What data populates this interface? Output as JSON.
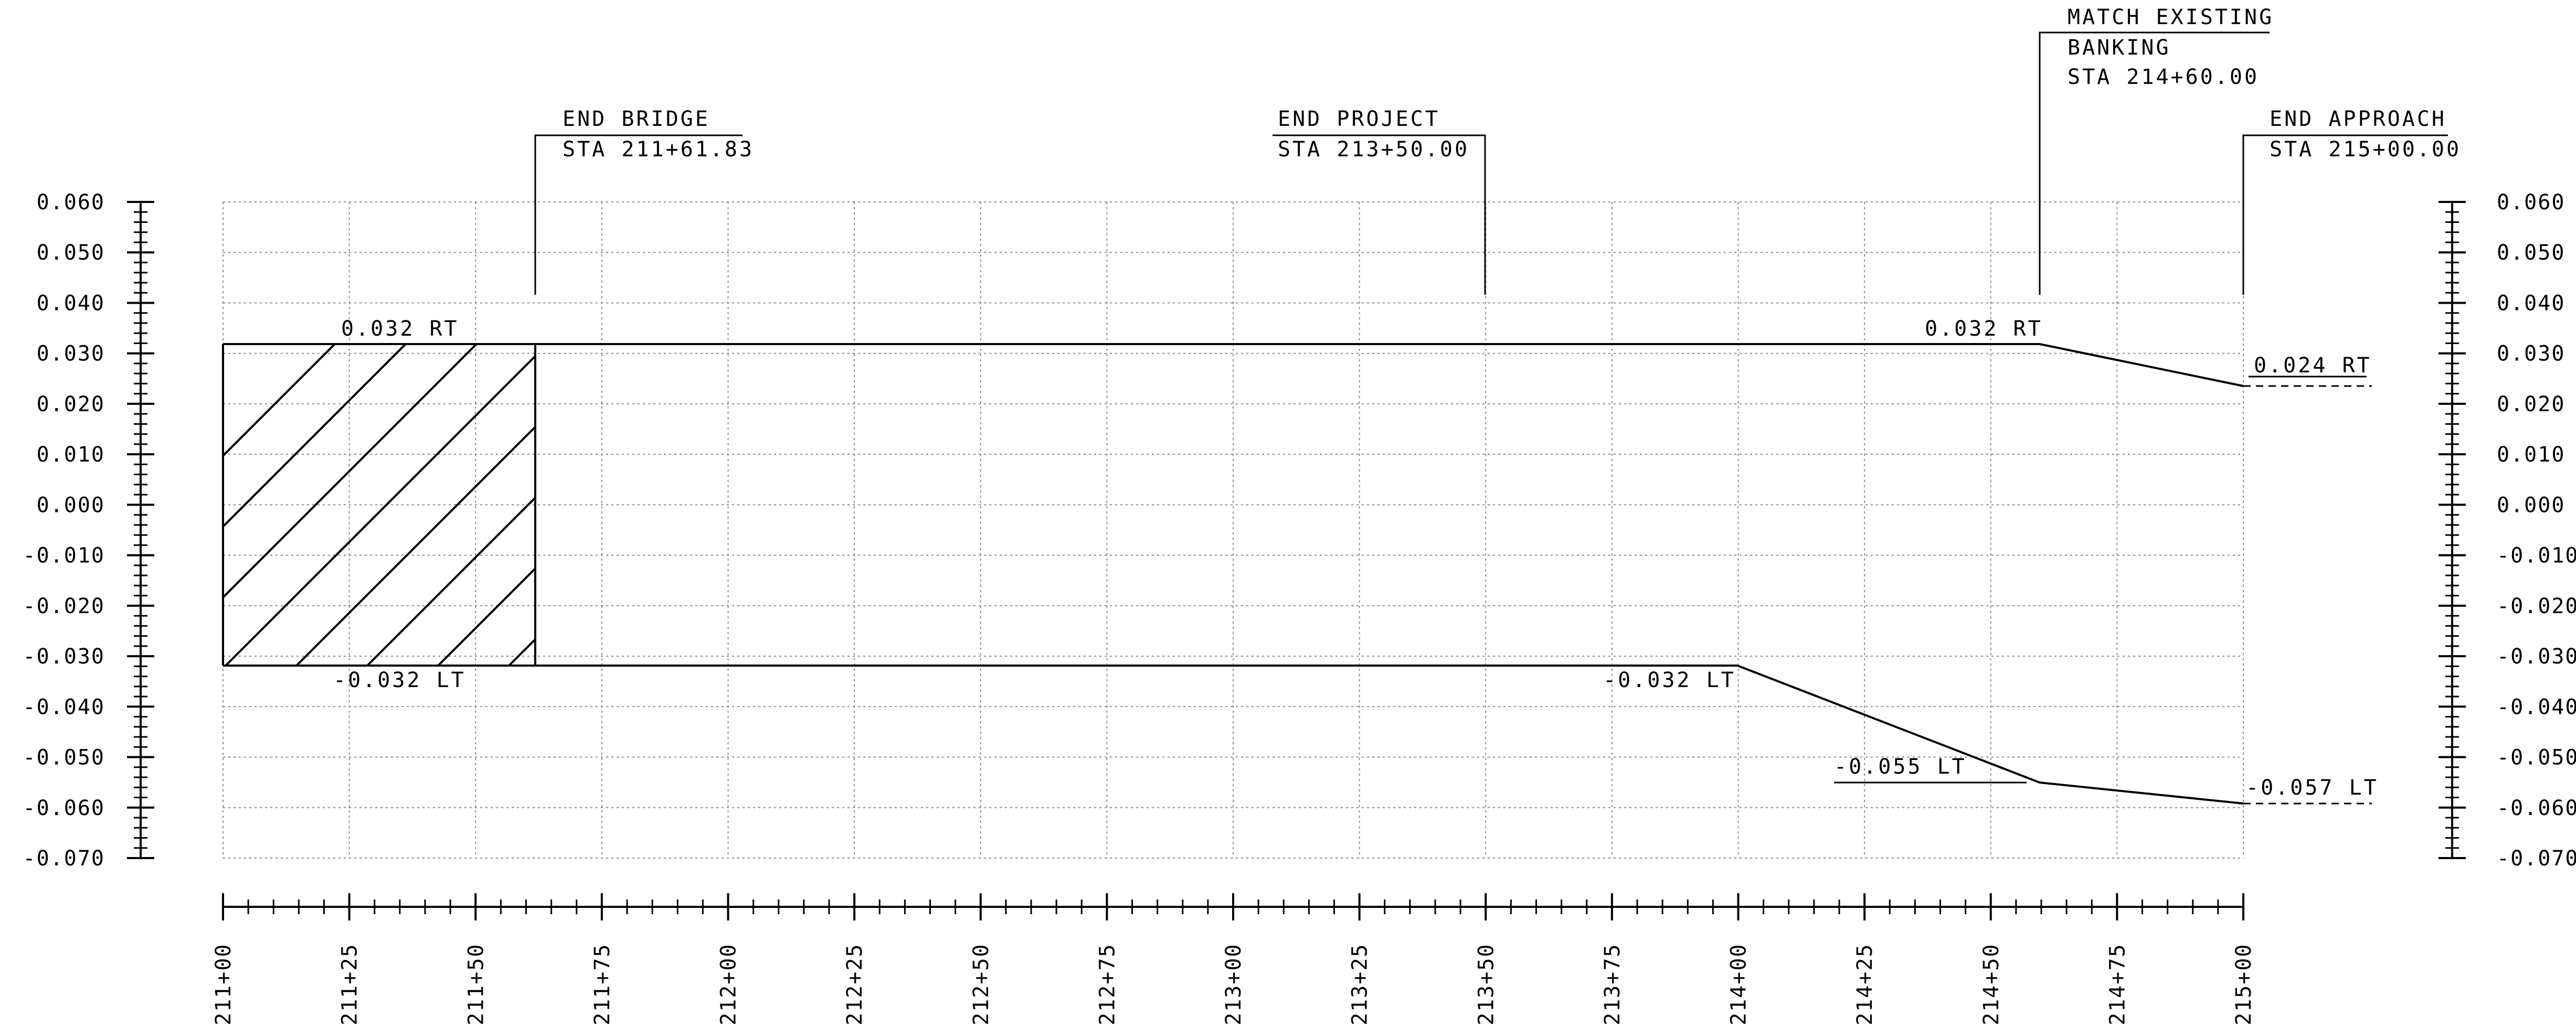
{
  "chart_data": {
    "type": "line",
    "x_range": [
      21100,
      21500
    ],
    "y_range": [
      -0.07,
      0.06
    ],
    "y_ticks": [
      "0.060",
      "0.050",
      "0.040",
      "0.030",
      "0.020",
      "0.010",
      "0.000",
      "-0.010",
      "-0.020",
      "-0.030",
      "-0.040",
      "-0.050",
      "-0.060",
      "-0.070"
    ],
    "x_ticks": [
      "211+00",
      "211+25",
      "211+50",
      "211+75",
      "212+00",
      "212+25",
      "212+50",
      "212+75",
      "213+00",
      "213+25",
      "213+50",
      "213+75",
      "214+00",
      "214+25",
      "214+50",
      "214+75",
      "215+00"
    ],
    "series": [
      {
        "points": [
          [
            21100,
            0.032
          ],
          [
            21460,
            0.032
          ],
          [
            21500,
            0.024
          ]
        ]
      },
      {
        "points": [
          [
            21100,
            -0.032
          ],
          [
            21400,
            -0.032
          ],
          [
            21460,
            -0.055
          ],
          [
            21500,
            -0.057
          ]
        ]
      }
    ],
    "bridge_hatch": {
      "from": 21100,
      "to": 21161.83
    },
    "annotations": {
      "end_bridge": {
        "line1": "END BRIDGE",
        "line2": "STA 211+61.83"
      },
      "end_project": {
        "line1": "END PROJECT",
        "line2": "STA 213+50.00"
      },
      "match_existing": {
        "line1": "MATCH EXISTING",
        "line2": "BANKING",
        "line3": "STA 214+60.00"
      },
      "end_approach": {
        "line1": "END APPROACH",
        "line2": "STA 215+00.00"
      }
    },
    "value_labels": {
      "rt_start": "0.032 RT",
      "rt_match": "0.032 RT",
      "rt_end": "0.024 RT",
      "lt_start": "-0.032 LT",
      "lt_mid": "-0.032 LT",
      "lt_match": "-0.055 LT",
      "lt_end": "-0.057 LT"
    }
  }
}
